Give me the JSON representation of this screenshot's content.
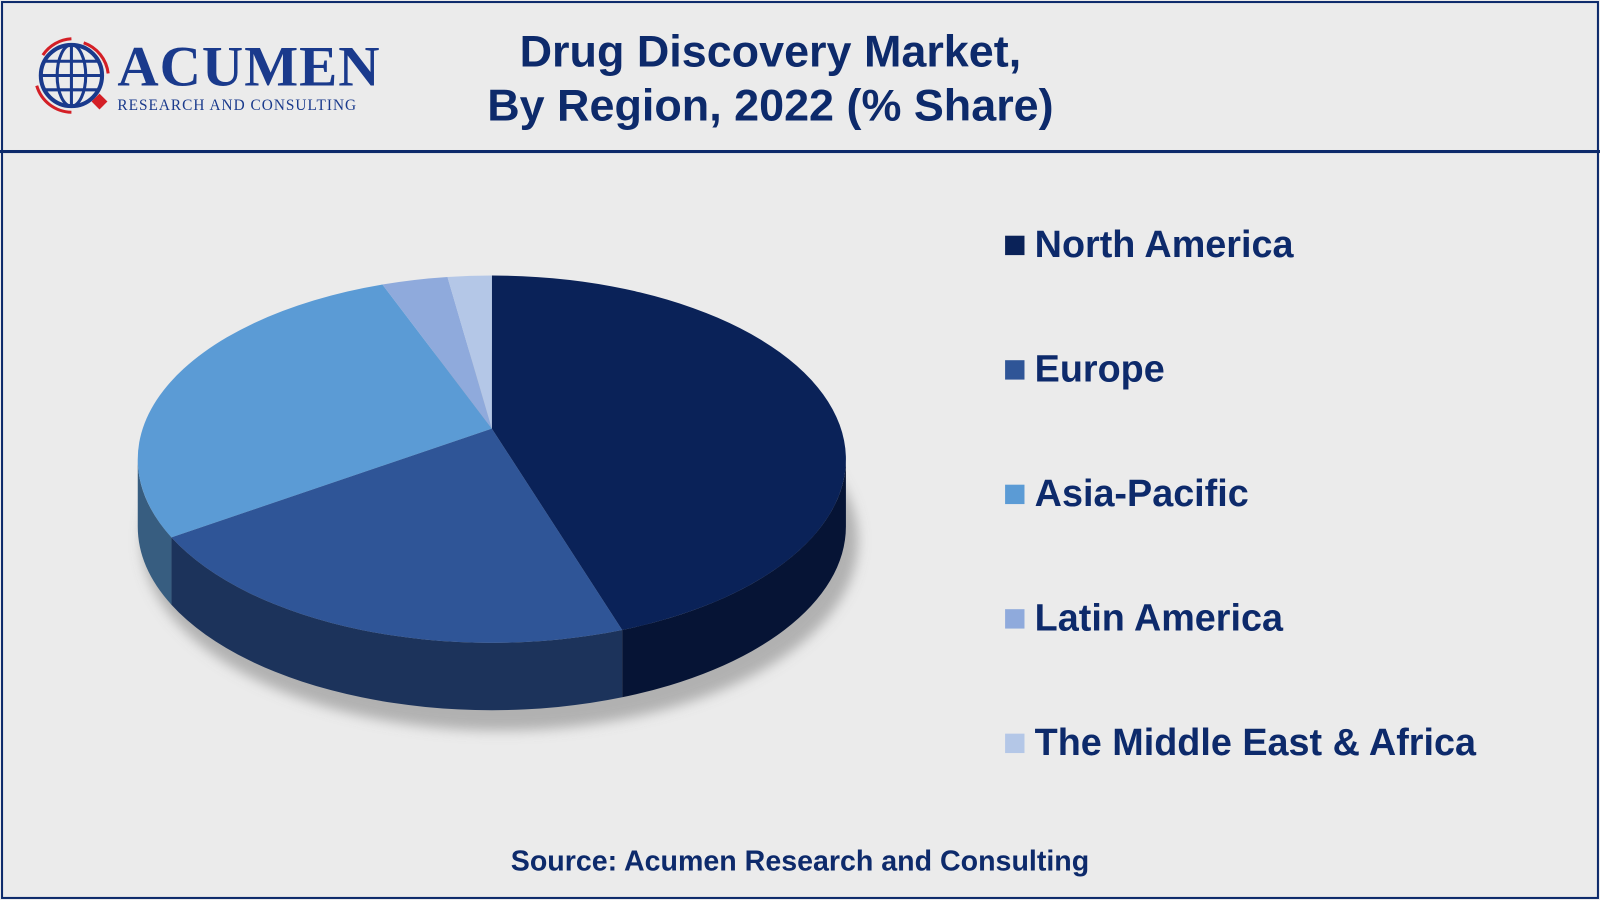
{
  "header": {
    "title_line1": "Drug Discovery Market,",
    "title_line2": "By Region, 2022 (% Share)",
    "logo_text": "Acumen",
    "logo_subtext": "RESEARCH AND CONSULTING"
  },
  "chart_data": {
    "type": "pie",
    "title": "Drug Discovery Market, By Region, 2022 (% Share)",
    "style": "3d",
    "legend_position": "right",
    "categories": [
      "North America",
      "Europe",
      "Asia-Pacific",
      "Latin America",
      "The Middle East & Africa"
    ],
    "values": [
      44,
      24,
      27,
      3,
      2
    ],
    "unit": "% share (estimated from slice sizes)",
    "colors": [
      "#0a2258",
      "#2f5597",
      "#5b9bd5",
      "#8faadc",
      "#b4c7e7"
    ]
  },
  "footer": {
    "source": "Source: Acumen Research and Consulting"
  }
}
